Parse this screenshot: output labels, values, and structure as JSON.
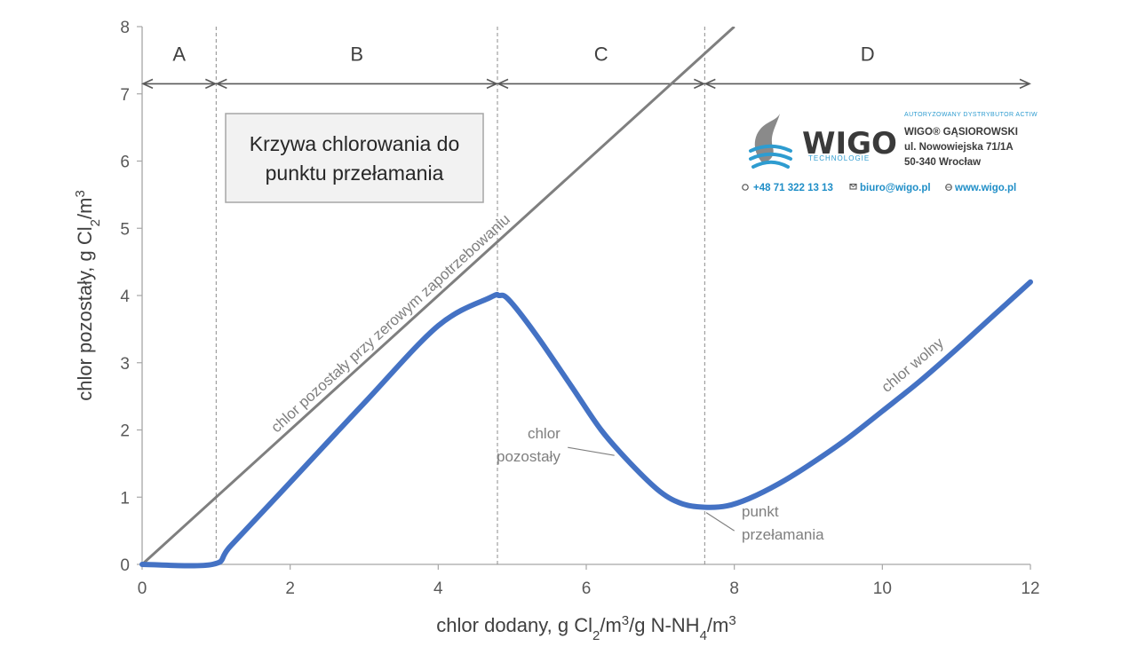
{
  "chart_data": {
    "type": "line",
    "title": "",
    "xlabel_parts": [
      {
        "t": "chlor dodany, g Cl",
        "s": "normal"
      },
      {
        "t": "2",
        "s": "sub"
      },
      {
        "t": "/m",
        "s": "normal"
      },
      {
        "t": "3",
        "s": "sup"
      },
      {
        "t": "/g N-NH",
        "s": "normal"
      },
      {
        "t": "4",
        "s": "sub"
      },
      {
        "t": "/m",
        "s": "normal"
      },
      {
        "t": "3",
        "s": "sup"
      }
    ],
    "ylabel_parts": [
      {
        "t": "chlor pozostały, g Cl",
        "s": "normal"
      },
      {
        "t": "2",
        "s": "sub"
      },
      {
        "t": "/m",
        "s": "normal"
      },
      {
        "t": "3",
        "s": "sup"
      }
    ],
    "xlim": [
      0,
      12
    ],
    "ylim": [
      0,
      8
    ],
    "x_ticks": [
      0,
      2,
      4,
      6,
      8,
      10,
      12
    ],
    "x_tick_labels": [
      "0",
      "2",
      "4",
      "6",
      "8",
      "10",
      "12"
    ],
    "y_ticks": [
      0,
      1,
      2,
      3,
      4,
      5,
      6,
      7,
      8
    ],
    "y_tick_labels": [
      "0",
      "1",
      "2",
      "3",
      "4",
      "5",
      "6",
      "7",
      "8"
    ],
    "grid": false,
    "series": [
      {
        "color": "#4472c4",
        "x": [
          0,
          0.95,
          1.2,
          2,
          3,
          4,
          4.7,
          4.82,
          4.95,
          5.3,
          5.8,
          6.2,
          6.6,
          7.0,
          7.3,
          7.6,
          7.9,
          8.2,
          8.6,
          9,
          9.5,
          10,
          10.5,
          11,
          11.5,
          12
        ],
        "y": [
          0,
          0,
          0.28,
          1.22,
          2.4,
          3.55,
          3.97,
          4.0,
          3.94,
          3.45,
          2.65,
          2.0,
          1.5,
          1.08,
          0.9,
          0.85,
          0.87,
          0.98,
          1.2,
          1.47,
          1.85,
          2.28,
          2.72,
          3.2,
          3.7,
          4.2
        ]
      },
      {
        "color": "#7f7f7f",
        "x": [
          0,
          8.0
        ],
        "y": [
          0,
          8.0
        ]
      }
    ],
    "regions": [
      {
        "label": "A",
        "from": 0,
        "to": 1.0
      },
      {
        "label": "B",
        "from": 1.0,
        "to": 4.8
      },
      {
        "label": "C",
        "from": 4.8,
        "to": 7.6
      },
      {
        "label": "D",
        "from": 7.6,
        "to": 12
      }
    ],
    "region_arrow_y": 7.15,
    "region_label_y": 7.6,
    "boundaries": [
      1.0,
      4.8,
      7.6
    ],
    "annotations": {
      "diagonal": "chlor pozostały przy zerowym zapotrzebowaniu",
      "residual_line1": "chlor",
      "residual_line2": "pozostały",
      "breakpoint_line1": "punkt",
      "breakpoint_line2": "przełamania",
      "free": "chlor wolny"
    },
    "box_title_line1": "Krzywa chlorowania do",
    "box_title_line2": "punktu przełamania"
  },
  "logo": {
    "authorized": "AUTORYZOWANY DYSTRYBUTOR ACTIW",
    "wordmark": "WIGO",
    "technology": "TECHNOLOGIE",
    "company": "WIGO® GĄSIOROWSKI",
    "street": "ul. Nowowiejska 71/1A",
    "city": "50-340 Wrocław",
    "phone": "+48 71 322 13 13",
    "email": "biuro@wigo.pl",
    "web": "www.wigo.pl",
    "phone_icon": "phone-icon",
    "email_icon": "email-icon",
    "web_icon": "globe-icon"
  }
}
